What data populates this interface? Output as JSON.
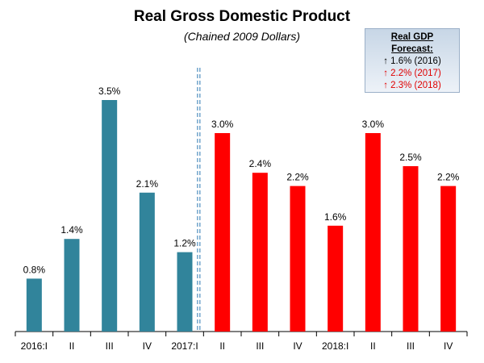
{
  "title": "Real Gross Domestic Product",
  "subtitle": "(Chained 2009 Dollars)",
  "forecast_box": {
    "title_line1": "Real GDP",
    "title_line2": "Forecast:",
    "lines": [
      {
        "text": "↑ 1.6% (2016)",
        "color": "#000000"
      },
      {
        "text": "↑ 2.2% (2017)",
        "color": "#e00000"
      },
      {
        "text": "↑ 2.3% (2018)",
        "color": "#e00000"
      }
    ]
  },
  "chart_data": {
    "type": "bar",
    "title": "Real Gross Domestic Product",
    "subtitle": "(Chained 2009 Dollars)",
    "categories": [
      "2016:I",
      "II",
      "III",
      "IV",
      "2017:I",
      "II",
      "III",
      "IV",
      "2018:I",
      "II",
      "III",
      "IV"
    ],
    "values": [
      0.8,
      1.4,
      3.5,
      2.1,
      1.2,
      3.0,
      2.4,
      2.2,
      1.6,
      3.0,
      2.5,
      2.2
    ],
    "value_labels": [
      "0.8%",
      "1.4%",
      "3.5%",
      "2.1%",
      "1.2%",
      "3.0%",
      "2.4%",
      "2.2%",
      "1.6%",
      "3.0%",
      "2.5%",
      "2.2%"
    ],
    "colors": {
      "actual": "#31849b",
      "forecast": "#ff0000",
      "divider": "#4f8fbf"
    },
    "actual_count": 5,
    "ylim": [
      0,
      3.5
    ],
    "xlabel": "",
    "ylabel": "",
    "grid": false,
    "legend": "none"
  }
}
